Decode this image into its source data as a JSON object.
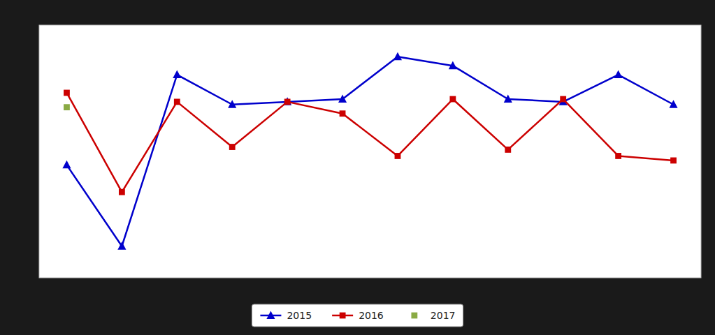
{
  "chart_data": {
    "type": "line",
    "x": [
      1,
      2,
      3,
      4,
      5,
      6,
      7,
      8,
      9,
      10,
      11,
      12
    ],
    "series": [
      {
        "name": "2015",
        "color": "#0000cc",
        "marker": "triangle",
        "line_style": "solid",
        "values": [
          -3.5,
          -12.5,
          6.5,
          3.2,
          3.5,
          3.8,
          8.5,
          7.5,
          3.8,
          3.5,
          6.5,
          3.2
        ]
      },
      {
        "name": "2016",
        "color": "#cc0000",
        "marker": "square",
        "line_style": "solid",
        "values": [
          4.5,
          -6.5,
          3.5,
          -1.5,
          3.5,
          2.2,
          -2.5,
          3.8,
          -1.8,
          3.8,
          -2.5,
          -3.0
        ]
      },
      {
        "name": "2017",
        "color": "#8aaa44",
        "marker": "square",
        "type": "scatter",
        "values": [
          2.9,
          null,
          null,
          null,
          null,
          null,
          null,
          null,
          null,
          null,
          null,
          null
        ]
      }
    ],
    "xlim": [
      0.5,
      12.5
    ],
    "ylim": [
      -16,
      12
    ],
    "grid": false,
    "tick_labels": false,
    "legend": "bottom"
  }
}
